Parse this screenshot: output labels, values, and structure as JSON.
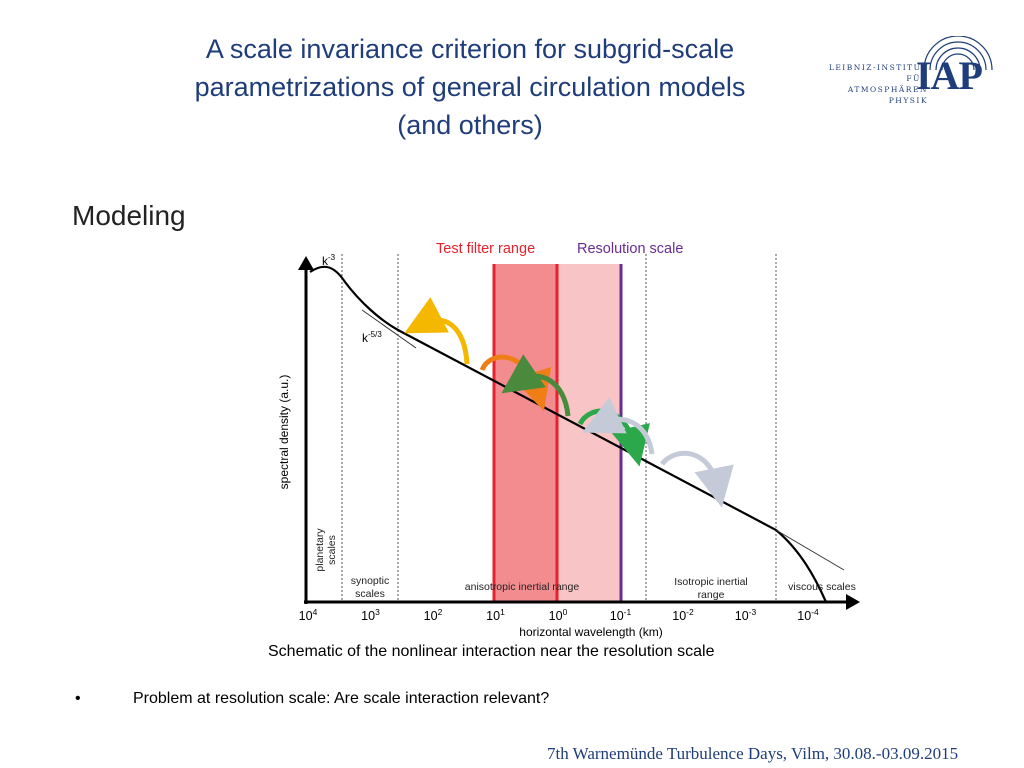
{
  "slide": {
    "title_lines": [
      "A scale invariance criterion for subgrid-scale",
      "parametrizations of general circulation models",
      "(and others)"
    ],
    "section_heading": "Modeling",
    "caption": "Schematic of the nonlinear interaction near the resolution scale",
    "bullet_symbol": "•",
    "bullet_text": "Problem at resolution scale: Are scale interaction relevant?",
    "footer": "7th Warnemünde Turbulence Days, Vilm, 30.08.-03.09.2015"
  },
  "logo": {
    "lines": [
      "LEIBNIZ-INSTITUT",
      "FÜR",
      "ATMOSPHÄREN",
      "PHYSIK"
    ],
    "mark": "IAP",
    "color": "#1f3d7a"
  },
  "chart_data": {
    "type": "line",
    "xlabel": "horizontal wavelength (km)",
    "ylabel": "spectral density (a.u.)",
    "x_ticks": [
      {
        "base": "10",
        "exp": "4"
      },
      {
        "base": "10",
        "exp": "3"
      },
      {
        "base": "10",
        "exp": "2"
      },
      {
        "base": "10",
        "exp": "1"
      },
      {
        "base": "10",
        "exp": "0"
      },
      {
        "base": "10",
        "exp": "-1"
      },
      {
        "base": "10",
        "exp": "-2"
      },
      {
        "base": "10",
        "exp": "-3"
      },
      {
        "base": "10",
        "exp": "-4"
      }
    ],
    "slope_labels": [
      {
        "text": "k",
        "exp": "-3"
      },
      {
        "text": "k",
        "exp": "-5/3"
      }
    ],
    "top_labels": [
      {
        "text": "Test filter range",
        "color": "#e8212b"
      },
      {
        "text": "Resolution scale",
        "color": "#6a2c91"
      }
    ],
    "regions": [
      {
        "lines": [
          "planetary",
          "scales"
        ]
      },
      {
        "lines": [
          "synoptic",
          "scales"
        ]
      },
      {
        "lines": [
          "anisotropic inertial range"
        ]
      },
      {
        "lines": [
          "Isotropic inertial",
          "range"
        ]
      },
      {
        "lines": [
          "viscous scales"
        ]
      }
    ],
    "colors": {
      "test_filter_line": "#e8212b",
      "test_filter_fill_dark": "#f28c8f",
      "test_filter_fill_light": "#f9c4c6",
      "resolution_line": "#6a2c91",
      "arrow_yellow": "#f5b800",
      "arrow_orange": "#f07e16",
      "arrow_darkgreen": "#4a8a3c",
      "arrow_green": "#2aa84a",
      "arrow_grey": "#c5cad8"
    }
  }
}
